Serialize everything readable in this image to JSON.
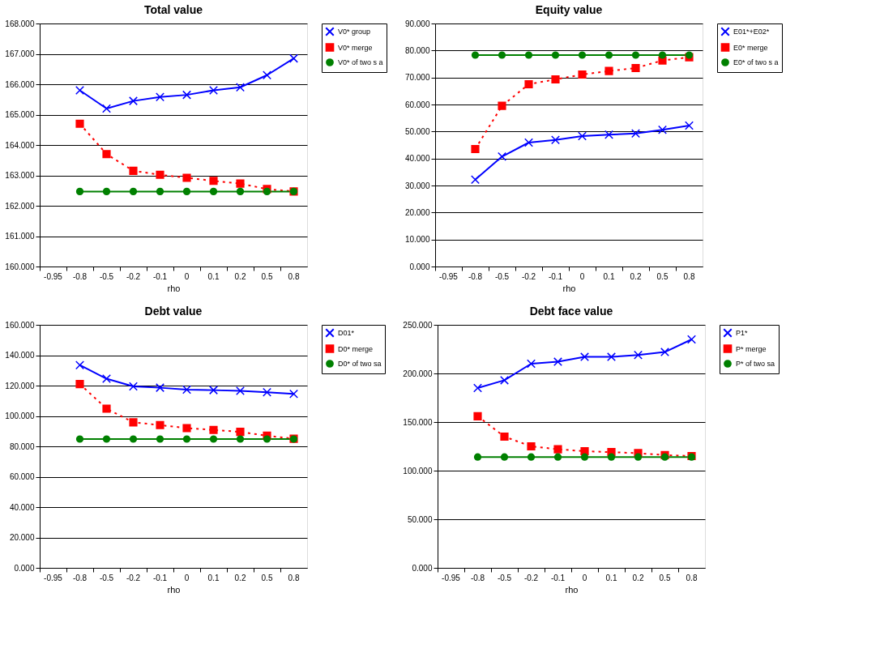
{
  "chart_data": [
    {
      "type": "line",
      "title": "Total value",
      "xlabel": "rho",
      "categories": [
        "-0.95",
        "-0.8",
        "-0.5",
        "-0.2",
        "-0.1",
        "0",
        "0.1",
        "0.2",
        "0.5",
        "0.8"
      ],
      "ylim": [
        160,
        168
      ],
      "yticks": [
        {
          "value": 160,
          "label": "160.000"
        },
        {
          "value": 161,
          "label": "161.000"
        },
        {
          "value": 162,
          "label": "162.000"
        },
        {
          "value": 163,
          "label": "163.000"
        },
        {
          "value": 164,
          "label": "164.000"
        },
        {
          "value": 165,
          "label": "165.000"
        },
        {
          "value": 166,
          "label": "166.000"
        },
        {
          "value": 167,
          "label": "167.000"
        },
        {
          "value": 168,
          "label": "168.000"
        }
      ],
      "grid": "y",
      "legend": "right",
      "series": [
        {
          "name": "V0* group",
          "color": "#0000ff",
          "marker": "cross",
          "line_style": "solid",
          "values": [
            null,
            165.8,
            165.2,
            165.45,
            165.58,
            165.65,
            165.8,
            165.9,
            166.3,
            166.85
          ]
        },
        {
          "name": "V0* merge",
          "color": "#ff0000",
          "marker": "square",
          "line_style": "dotted",
          "values": [
            null,
            164.7,
            163.7,
            163.15,
            163.02,
            162.92,
            162.82,
            162.73,
            162.55,
            162.47
          ]
        },
        {
          "name": "V0* of two s a",
          "color": "#008000",
          "marker": "circle",
          "line_style": "solid",
          "values": [
            null,
            162.47,
            162.47,
            162.47,
            162.47,
            162.47,
            162.47,
            162.47,
            162.47,
            162.47
          ]
        }
      ]
    },
    {
      "type": "line",
      "title": "Equity value",
      "xlabel": "rho",
      "categories": [
        "-0.95",
        "-0.8",
        "-0.5",
        "-0.2",
        "-0.1",
        "0",
        "0.1",
        "0.2",
        "0.5",
        "0.8"
      ],
      "ylim": [
        0,
        90
      ],
      "yticks": [
        {
          "value": 0,
          "label": "0.000"
        },
        {
          "value": 10,
          "label": "10.000"
        },
        {
          "value": 20,
          "label": "20.000"
        },
        {
          "value": 30,
          "label": "30.000"
        },
        {
          "value": 40,
          "label": "40.000"
        },
        {
          "value": 50,
          "label": "50.000"
        },
        {
          "value": 60,
          "label": "60.000"
        },
        {
          "value": 70,
          "label": "70.000"
        },
        {
          "value": 80,
          "label": "80.000"
        },
        {
          "value": 90,
          "label": "90.000"
        }
      ],
      "grid": "y",
      "legend": "right",
      "series": [
        {
          "name": "E01*+E02*",
          "color": "#0000ff",
          "marker": "cross",
          "line_style": "solid",
          "values": [
            null,
            32.2,
            40.7,
            45.9,
            46.9,
            48.3,
            48.8,
            49.3,
            50.6,
            52.2
          ]
        },
        {
          "name": "E0* merge",
          "color": "#ff0000",
          "marker": "square",
          "line_style": "dotted",
          "values": [
            null,
            43.5,
            59.5,
            67.5,
            69.3,
            71.1,
            72.4,
            73.5,
            76.3,
            77.5
          ]
        },
        {
          "name": "E0* of two s a",
          "color": "#008000",
          "marker": "circle",
          "line_style": "solid",
          "values": [
            null,
            78.3,
            78.3,
            78.3,
            78.3,
            78.3,
            78.3,
            78.3,
            78.3,
            78.3
          ]
        }
      ]
    },
    {
      "type": "line",
      "title": "Debt value",
      "xlabel": "rho",
      "categories": [
        "-0.95",
        "-0.8",
        "-0.5",
        "-0.2",
        "-0.1",
        "0",
        "0.1",
        "0.2",
        "0.5",
        "0.8"
      ],
      "ylim": [
        0,
        160
      ],
      "yticks": [
        {
          "value": 0,
          "label": "0.000"
        },
        {
          "value": 20,
          "label": "20.000"
        },
        {
          "value": 40,
          "label": "40.000"
        },
        {
          "value": 60,
          "label": "60.000"
        },
        {
          "value": 80,
          "label": "80.000"
        },
        {
          "value": 100,
          "label": "100.000"
        },
        {
          "value": 120,
          "label": "120.000"
        },
        {
          "value": 140,
          "label": "140.000"
        },
        {
          "value": 160,
          "label": "160.000"
        }
      ],
      "grid": "y",
      "legend": "right",
      "series": [
        {
          "name": "D01*",
          "color": "#0000ff",
          "marker": "cross",
          "line_style": "solid",
          "values": [
            null,
            133.5,
            124.5,
            119.5,
            118.6,
            117.3,
            117,
            116.5,
            115.6,
            114.5
          ]
        },
        {
          "name": "D0* merge",
          "color": "#ff0000",
          "marker": "square",
          "line_style": "dotted",
          "values": [
            null,
            121,
            104.8,
            95.8,
            94,
            92,
            90.8,
            89.5,
            87,
            85
          ]
        },
        {
          "name": "D0* of two sa",
          "color": "#008000",
          "marker": "circle",
          "line_style": "solid",
          "values": [
            null,
            84.8,
            84.8,
            84.8,
            84.8,
            84.8,
            84.8,
            84.8,
            84.8,
            84.8
          ]
        }
      ]
    },
    {
      "type": "line",
      "title": "Debt face value",
      "xlabel": "rho",
      "categories": [
        "-0.95",
        "-0.8",
        "-0.5",
        "-0.2",
        "-0.1",
        "0",
        "0.1",
        "0.2",
        "0.5",
        "0.8"
      ],
      "ylim": [
        0,
        250
      ],
      "yticks": [
        {
          "value": 0,
          "label": "0.000"
        },
        {
          "value": 50,
          "label": "50.000"
        },
        {
          "value": 100,
          "label": "100.000"
        },
        {
          "value": 150,
          "label": "150.000"
        },
        {
          "value": 200,
          "label": "200.000"
        },
        {
          "value": 250,
          "label": "250.000"
        }
      ],
      "grid": "y",
      "legend": "right",
      "series": [
        {
          "name": "P1*",
          "color": "#0000ff",
          "marker": "cross",
          "line_style": "solid",
          "values": [
            null,
            185,
            193,
            210,
            212,
            217,
            217,
            219,
            222,
            235
          ]
        },
        {
          "name": "P* merge",
          "color": "#ff0000",
          "marker": "square",
          "line_style": "dotted",
          "values": [
            null,
            156,
            135,
            125,
            122,
            120,
            119,
            118,
            116,
            115
          ]
        },
        {
          "name": "P* of two sa",
          "color": "#008000",
          "marker": "circle",
          "line_style": "solid",
          "values": [
            null,
            114,
            114,
            114,
            114,
            114,
            114,
            114,
            114,
            114
          ]
        }
      ]
    }
  ]
}
